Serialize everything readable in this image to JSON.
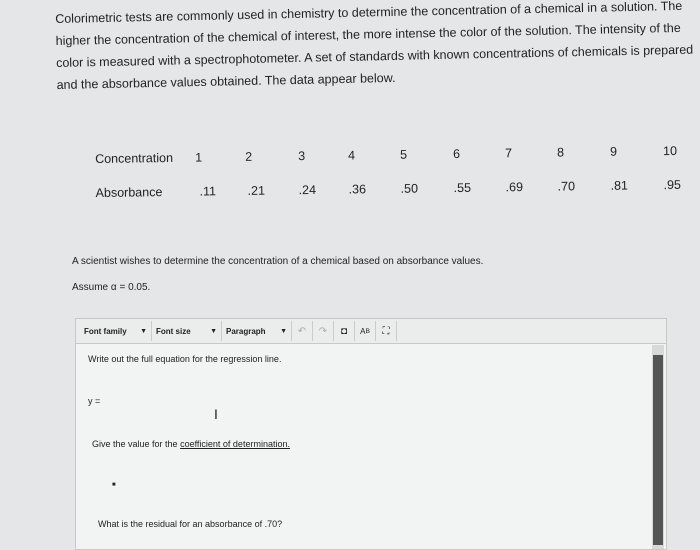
{
  "intro": "Colorimetric tests are commonly used in chemistry to determine the concentration of a chemical in a solution. The higher the concentration of the chemical of interest, the more intense the color of the solution. The intensity of the color is measured with a spectrophotometer. A set of standards with known concentrations of chemicals is prepared and the absorbance values obtained. The data appear below.",
  "table": {
    "row_labels": [
      "Concentration",
      "Absorbance"
    ],
    "concentration": [
      "1",
      "2",
      "3",
      "4",
      "5",
      "6",
      "7",
      "8",
      "9",
      "10"
    ],
    "absorbance": [
      ".11",
      ".21",
      ".24",
      ".36",
      ".50",
      ".55",
      ".69",
      ".70",
      ".81",
      ".95"
    ]
  },
  "question": "A scientist wishes to determine the concentration of a chemical based on absorbance values.",
  "assume": "Assume α = 0.05.",
  "editor": {
    "font_family": "Font family",
    "font_size": "Font size",
    "paragraph": "Paragraph",
    "prompt1": "Write out the full equation for the regression line.",
    "answer1": "y =",
    "prompt2_prefix": "Give the value for the ",
    "prompt2_link": "coefficient of determination.",
    "prompt3": "What is the residual for an absorbance of .70?"
  }
}
